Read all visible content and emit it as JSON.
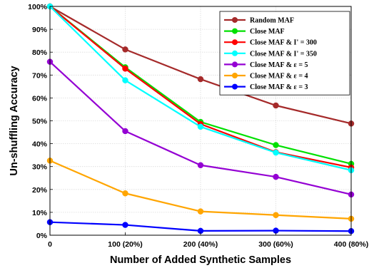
{
  "chart_data": {
    "type": "line",
    "title": "",
    "xlabel": "Number of Added Synthetic Samples",
    "ylabel": "Un-shuffling Accuracy",
    "categories": [
      "0",
      "100 (20%)",
      "200 (40%)",
      "300 (60%)",
      "400 (80%)"
    ],
    "x": [
      0,
      100,
      200,
      300,
      400
    ],
    "xlim": [
      0,
      400
    ],
    "ylim": [
      0,
      100
    ],
    "yticks": [
      0,
      10,
      20,
      30,
      40,
      50,
      60,
      70,
      80,
      90,
      100
    ],
    "ytick_labels": [
      "0%",
      "10%",
      "20%",
      "30%",
      "40%",
      "50%",
      "60%",
      "70%",
      "80%",
      "90%",
      "100%"
    ],
    "grid": true,
    "legend_position": "top-right",
    "series": [
      {
        "name": "Random MAF",
        "color": "#a52a2a",
        "values": [
          100,
          81.2,
          68.2,
          56.7,
          48.8
        ]
      },
      {
        "name": "Close MAF",
        "color": "#00e000",
        "values": [
          100,
          73.4,
          49.5,
          39.4,
          31.2
        ]
      },
      {
        "name": "Close MAF & I' = 300",
        "color": "#ff0000",
        "values": [
          100,
          72.8,
          48.6,
          36.3,
          29.6
        ]
      },
      {
        "name": "Close MAF & I' = 350",
        "color": "#00ffff",
        "values": [
          100,
          67.7,
          47.4,
          36.1,
          28.4
        ]
      },
      {
        "name": "Close MAF & ε = 5",
        "color": "#9400d3",
        "values": [
          75.8,
          45.5,
          30.6,
          25.5,
          17.8
        ]
      },
      {
        "name": "Close MAF & ε = 4",
        "color": "#ffa500",
        "values": [
          32.6,
          18.3,
          10.4,
          8.8,
          7.2
        ]
      },
      {
        "name": "Close MAF & ε = 3",
        "color": "#0000ff",
        "values": [
          5.7,
          4.5,
          1.9,
          2.0,
          1.8
        ]
      }
    ]
  }
}
